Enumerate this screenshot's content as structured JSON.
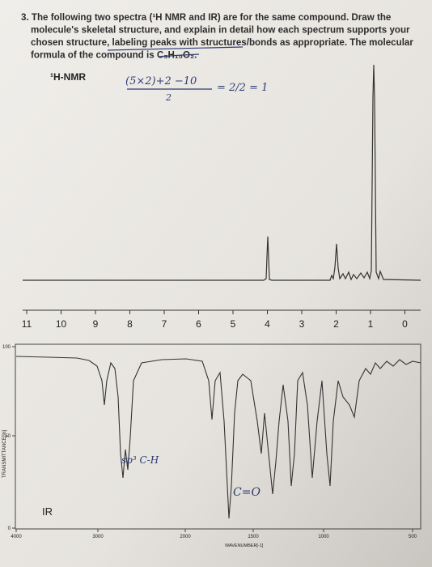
{
  "question": {
    "lines": [
      "3. The following two spectra (¹H NMR and IR) are for the same compound. Draw the",
      "molecule's skeletal structure, and explain in detail how each spectrum supports your",
      "chosen structure, labeling peaks with structures/bonds as appropriate. The molecular",
      "formula of the compound is C₅H₁₀O₂."
    ]
  },
  "nmr": {
    "label": "¹H-NMR",
    "ticks": [
      11,
      10,
      9,
      8,
      7,
      6,
      5,
      4,
      3,
      2,
      1,
      0
    ],
    "note": {
      "numerator": "(5×2)+2 −10",
      "denominator": "2",
      "result": "= 2/2 = 1"
    }
  },
  "ir": {
    "label": "IR",
    "y_label": "TRANSMITTANCE[%]",
    "y_ticks": [
      100,
      50,
      0
    ],
    "x_label": "WAVENUMBER[-1]",
    "x_ticks": [
      4000,
      3000,
      2000,
      1500,
      1000,
      500
    ],
    "notes": [
      "sp³ C-H",
      "C=O"
    ]
  }
}
